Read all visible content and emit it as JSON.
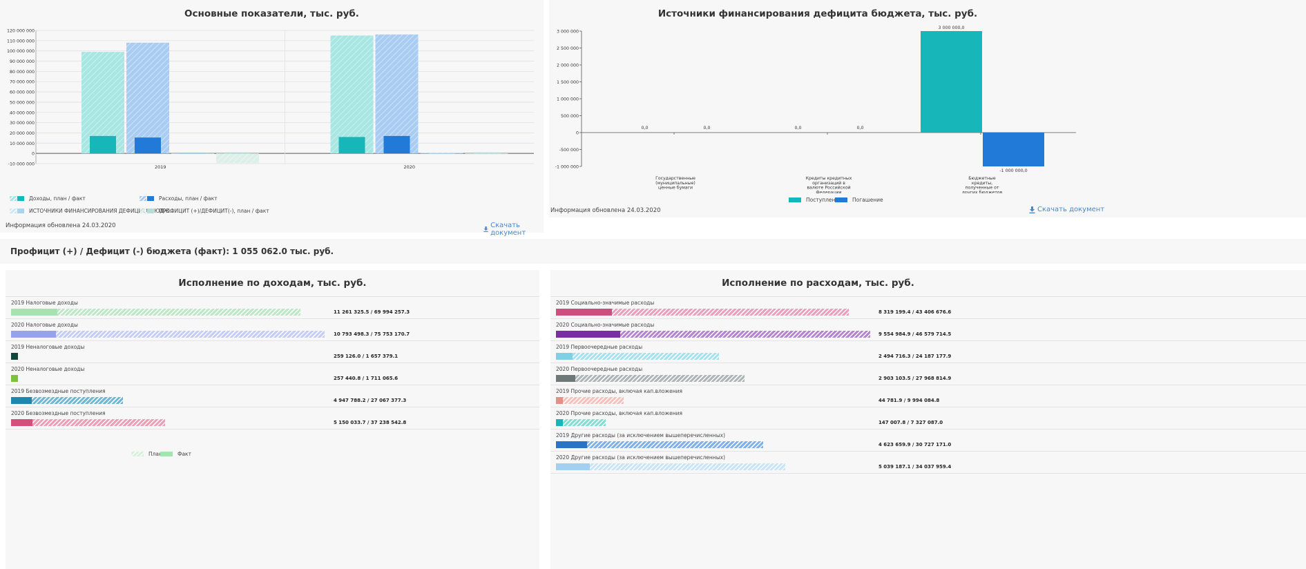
{
  "colors": {
    "teal": "#17b7b9",
    "blue": "#2179d8",
    "light_teal": "#a7e6e2",
    "light_blue": "#a9cdf2",
    "pale_green": "#d9efe9",
    "panel_bg": "#f7f7f8",
    "link": "#4a86c8"
  },
  "main_indicators": {
    "title": "Основные показатели, тыс. руб.",
    "legend": [
      {
        "label": "Доходы, план / факт",
        "plan_color": "#a7e6e2",
        "fact_color": "#17b7b9"
      },
      {
        "label": "Расходы, план / факт",
        "plan_color": "#a9cdf2",
        "fact_color": "#2179d8"
      },
      {
        "label": "ИСТОЧНИКИ ФИНАНСИРОВАНИЯ ДЕФИЦИТА БЮДЖ...",
        "plan_color": "#cfe6f6",
        "fact_color": "#a9d4f0"
      },
      {
        "label": "ПРОФИЦИТ (+)/ДЕФИЦИТ(-), план / факт",
        "plan_color": "#dcefe9",
        "fact_color": "#b7dcd3"
      }
    ],
    "info": "Информация обновлена 24.03.2020",
    "download_label": "Скачать документ",
    "download_icon": "download-icon",
    "chart_data": {
      "type": "bar",
      "categories": [
        "2019",
        "2020"
      ],
      "series": [
        {
          "name": "Доходы, план",
          "values": [
            99000000,
            115000000
          ]
        },
        {
          "name": "Доходы, факт",
          "values": [
            17000000,
            16000000
          ]
        },
        {
          "name": "Расходы, план",
          "values": [
            108000000,
            116000000
          ]
        },
        {
          "name": "Расходы, факт",
          "values": [
            15500000,
            17000000
          ]
        },
        {
          "name": "ИСТОЧНИКИ ФИНАНСИРОВАНИЯ ДЕФИЦИТА БЮДЖ..., план",
          "values": [
            -500000,
            1000000
          ]
        },
        {
          "name": "ИСТОЧНИКИ ФИНАНСИРОВАНИЯ ДЕФИЦИТА БЮДЖ..., факт",
          "values": [
            0,
            0
          ]
        },
        {
          "name": "ПРОФИЦИТ (+)/ДЕФИЦИТ(-), план",
          "values": [
            -9500000,
            -1000000
          ]
        },
        {
          "name": "ПРОФИЦИТ (+)/ДЕФИЦИТ(-), факт",
          "values": [
            1000000,
            1000000
          ]
        }
      ],
      "ylim": [
        -10000000,
        120000000
      ],
      "yticks": [
        -10000000,
        0,
        10000000,
        20000000,
        30000000,
        40000000,
        50000000,
        60000000,
        70000000,
        80000000,
        90000000,
        100000000,
        110000000,
        120000000
      ],
      "ytick_labels": [
        "-10 000 000",
        "0",
        "10 000 000",
        "20 000 000",
        "30 000 000",
        "40 000 000",
        "50 000 000",
        "60 000 000",
        "70 000 000",
        "80 000 000",
        "90 000 000",
        "100 000 000",
        "110 000 000",
        "120 000 000"
      ],
      "grid": true
    }
  },
  "deficit_sources": {
    "title": "Источники финансирования дефицита бюджета, тыс. руб.",
    "legend": [
      {
        "label": "Поступление",
        "color": "#17b7b9"
      },
      {
        "label": "Погашение",
        "color": "#2179d8"
      }
    ],
    "info": "Информация обновлена 24.03.2020",
    "download_label": "Скачать документ",
    "download_icon": "download-icon",
    "chart_data": {
      "type": "bar",
      "categories": [
        [
          "Государственные",
          "(муниципальные)",
          "ценные бумаги"
        ],
        [
          "Кредиты кредитных",
          "организаций в",
          "валюте Российской",
          "Федерации"
        ],
        [
          "Бюджетные",
          "кредиты,",
          "полученные от",
          "других бюджетов"
        ]
      ],
      "series": [
        {
          "name": "Поступление",
          "values": [
            0,
            0,
            3000000
          ]
        },
        {
          "name": "Погашение",
          "values": [
            0,
            0,
            -1000000
          ]
        }
      ],
      "data_labels": [
        [
          "0,0",
          "0,0",
          "3 000 000,0"
        ],
        [
          "0,0",
          "0,0",
          "-1 000 000,0"
        ]
      ],
      "ylim": [
        -1000000,
        3000000
      ],
      "yticks": [
        -1000000,
        -500000,
        0,
        500000,
        1000000,
        1500000,
        2000000,
        2500000,
        3000000
      ],
      "ytick_labels": [
        "-1 000 000",
        "-500 000",
        "0",
        "500 000",
        "1 000 000",
        "1 500 000",
        "2 000 000",
        "2 500 000",
        "3 000 000"
      ],
      "grid": false
    }
  },
  "summary": {
    "text": "Профицит (+) / Дефицит (-) бюджета (факт): 1 055 062.0 тыс. руб."
  },
  "income_execution": {
    "title": "Исполнение по доходам, тыс. руб.",
    "legend": [
      {
        "label": "План",
        "color": "#d6f1d9"
      },
      {
        "label": "Факт",
        "color": "#a6e3ad"
      }
    ],
    "chart_data": {
      "type": "bar",
      "orientation": "horizontal",
      "max": 75753170.7,
      "items": [
        {
          "label": "2019 Налоговые доходы",
          "fact": 11261325.5,
          "plan": 69994257.3,
          "value_text": "11 261 325.5 / 69 994 257.3",
          "plan_color": "#bde8c5",
          "fact_color": "#a8e1b2"
        },
        {
          "label": "2020 Налоговые доходы",
          "fact": 10793498.3,
          "plan": 75753170.7,
          "value_text": "10 793 498.3 / 75 753 170.7",
          "plan_color": "#c4cdf5",
          "fact_color": "#96a3ea"
        },
        {
          "label": "2019 Неналоговые доходы",
          "fact": 259126.0,
          "plan": 1657379.1,
          "value_text": "259 126.0 / 1 657 379.1",
          "plan_color": "#2f6b5c",
          "fact_color": "#14463b"
        },
        {
          "label": "2020 Неналоговые доходы",
          "fact": 257440.8,
          "plan": 1711065.6,
          "value_text": "257 440.8 / 1 711 065.6",
          "plan_color": "#a8d86a",
          "fact_color": "#7dc13f"
        },
        {
          "label": "2019 Безвозмездные поступления",
          "fact": 4947788.2,
          "plan": 27067377.3,
          "value_text": "4 947 788.2 / 27 067 377.3",
          "plan_color": "#6fb7d3",
          "fact_color": "#1f86ad"
        },
        {
          "label": "2020 Безвозмездные поступления",
          "fact": 5150033.7,
          "plan": 37238542.8,
          "value_text": "5 150 033.7 / 37 238 542.8",
          "plan_color": "#eb9eb6",
          "fact_color": "#d44f7c"
        }
      ]
    }
  },
  "expense_execution": {
    "title": "Исполнение по расходам, тыс. руб.",
    "chart_data": {
      "type": "bar",
      "orientation": "horizontal",
      "max": 46579714.5,
      "items": [
        {
          "label": "2019 Социально-значимые расходы",
          "fact": 8319199.4,
          "plan": 43406676.6,
          "value_text": "8 319 199.4 / 43 406 676.6",
          "plan_color": "#e8a0bb",
          "fact_color": "#cd4f80"
        },
        {
          "label": "2020 Социально-значимые расходы",
          "fact": 9554984.9,
          "plan": 46579714.5,
          "value_text": "9 554 984.9 / 46 579 714.5",
          "plan_color": "#b584cf",
          "fact_color": "#7a2ea3"
        },
        {
          "label": "2019 Первоочередные расходы",
          "fact": 2494716.3,
          "plan": 24187177.9,
          "value_text": "2 494 716.3 / 24 187 177.9",
          "plan_color": "#a6e1ef",
          "fact_color": "#7fd0e3"
        },
        {
          "label": "2020 Первоочередные расходы",
          "fact": 2903103.5,
          "plan": 27968814.9,
          "value_text": "2 903 103.5 / 27 968 814.9",
          "plan_color": "#adb6b5",
          "fact_color": "#6d7877"
        },
        {
          "label": "2019 Прочие расходы, включая кап.вложения",
          "fact": 44781.9,
          "plan": 9994084.8,
          "value_text": "44 781.9 / 9 994 084.8",
          "plan_color": "#f6c0bb",
          "fact_color": "#e48f87"
        },
        {
          "label": "2020 Прочие расходы, включая кап.вложения",
          "fact": 147007.8,
          "plan": 7327087.0,
          "value_text": "147 007.8 / 7 327 087.0",
          "plan_color": "#84ddd5",
          "fact_color": "#17b7b9"
        },
        {
          "label": "2019 Другие расходы (за исключением вышеперечисленных)",
          "fact": 4623659.9,
          "plan": 30727171.0,
          "value_text": "4 623 659.9 / 30 727 171.0",
          "plan_color": "#7fb1e8",
          "fact_color": "#2a74c8"
        },
        {
          "label": "2020 Другие расходы (за исключением вышеперечисленных)",
          "fact": 5039187.1,
          "plan": 34037959.4,
          "value_text": "5 039 187.1 / 34 037 959.4",
          "plan_color": "#c9e4f7",
          "fact_color": "#a3d0f1"
        }
      ]
    }
  }
}
